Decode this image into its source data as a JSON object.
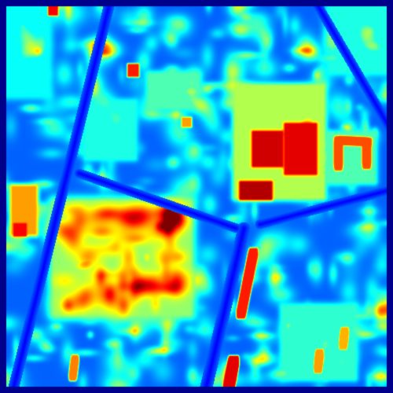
{
  "image": {
    "kind": "aerial-heatmap",
    "colormap": "jet",
    "colormap_stops": [
      "#00007f",
      "#0000ff",
      "#0080ff",
      "#00ffff",
      "#80ff80",
      "#ffff00",
      "#ff8000",
      "#ff0000",
      "#7f0000"
    ],
    "border_color": "#00008b"
  }
}
